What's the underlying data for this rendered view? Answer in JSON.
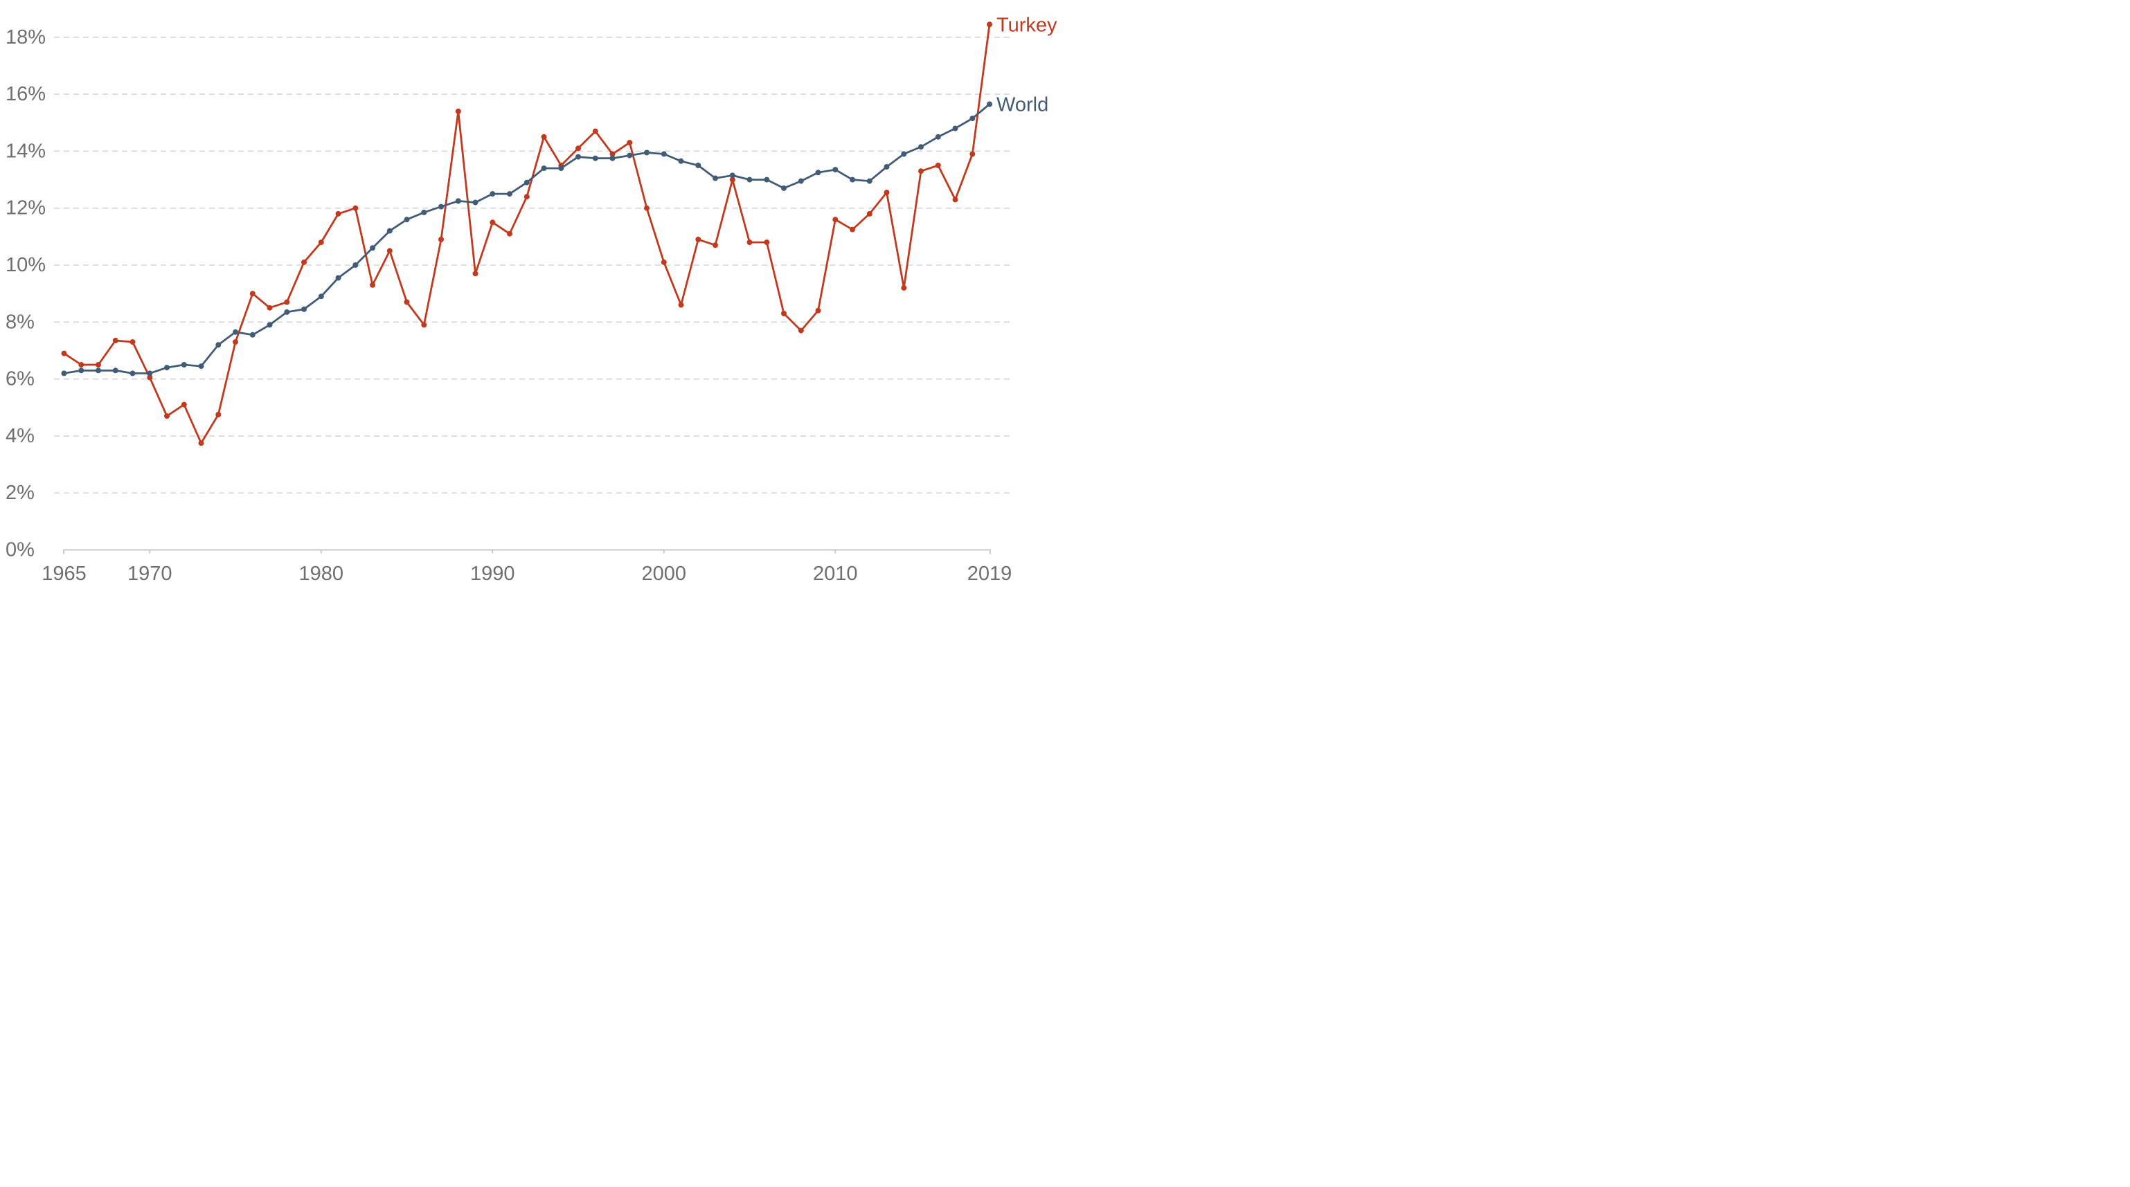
{
  "chart_data": {
    "type": "line",
    "title": "",
    "xlabel": "",
    "ylabel": "",
    "ylim": [
      0,
      18
    ],
    "ytick_step": 2,
    "ytick_suffix": "%",
    "xticks": [
      1965,
      1970,
      1980,
      1990,
      2000,
      2010,
      2019
    ],
    "grid": "horizontal-dashed",
    "legend_position": "line-end-labels",
    "x": [
      1965,
      1966,
      1967,
      1968,
      1969,
      1970,
      1971,
      1972,
      1973,
      1974,
      1975,
      1976,
      1977,
      1978,
      1979,
      1980,
      1981,
      1982,
      1983,
      1984,
      1985,
      1986,
      1987,
      1988,
      1989,
      1990,
      1991,
      1992,
      1993,
      1994,
      1995,
      1996,
      1997,
      1998,
      1999,
      2000,
      2001,
      2002,
      2003,
      2004,
      2005,
      2006,
      2007,
      2008,
      2009,
      2010,
      2011,
      2012,
      2013,
      2014,
      2015,
      2016,
      2017,
      2018,
      2019
    ],
    "series": [
      {
        "name": "Turkey",
        "color": "#c13a1e",
        "values": [
          6.9,
          6.5,
          6.5,
          7.35,
          7.3,
          6.05,
          4.7,
          5.1,
          3.75,
          4.75,
          7.3,
          9.0,
          8.5,
          8.7,
          10.1,
          10.8,
          11.8,
          12.0,
          9.3,
          10.5,
          8.7,
          7.9,
          10.9,
          15.4,
          9.7,
          11.5,
          11.1,
          12.4,
          14.5,
          13.5,
          14.1,
          14.7,
          13.9,
          14.3,
          12.0,
          10.1,
          8.6,
          10.9,
          10.7,
          13.0,
          10.8,
          10.8,
          8.3,
          7.7,
          8.4,
          11.6,
          11.25,
          11.8,
          12.55,
          9.2,
          13.3,
          13.5,
          12.3,
          13.9,
          18.45
        ]
      },
      {
        "name": "World",
        "color": "#425c78",
        "values": [
          6.2,
          6.3,
          6.3,
          6.3,
          6.2,
          6.2,
          6.4,
          6.5,
          6.45,
          7.2,
          7.65,
          7.55,
          7.9,
          8.35,
          8.45,
          8.9,
          9.55,
          10.0,
          10.6,
          11.2,
          11.6,
          11.85,
          12.05,
          12.25,
          12.2,
          12.5,
          12.5,
          12.9,
          13.4,
          13.4,
          13.8,
          13.75,
          13.75,
          13.85,
          13.95,
          13.9,
          13.65,
          13.5,
          13.05,
          13.15,
          13.0,
          13.0,
          12.7,
          12.95,
          13.25,
          13.35,
          13.0,
          12.95,
          13.45,
          13.9,
          14.15,
          14.5,
          14.8,
          15.15,
          15.65
        ]
      }
    ],
    "style": {
      "axis_text_color": "#6f6f6f",
      "gridline_color": "#d6d6d6",
      "baseline_color": "#c4c4c4",
      "background_color": "#ffffff"
    }
  }
}
